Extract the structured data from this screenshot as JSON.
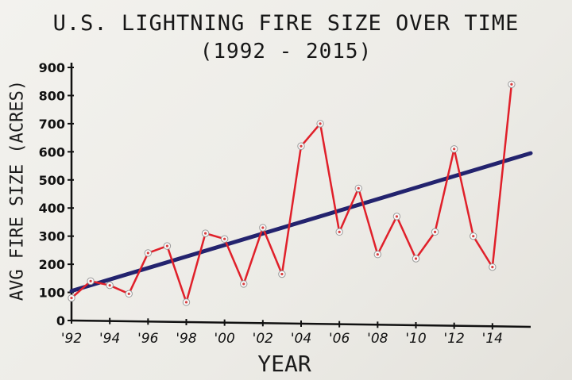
{
  "chart_data": {
    "type": "line",
    "title": "U.S. LIGHTNING FIRE SIZE OVER TIME",
    "subtitle": "(1992 - 2015)",
    "xlabel": "YEAR",
    "ylabel": "AVG FIRE SIZE (ACRES)",
    "ylim": [
      0,
      900
    ],
    "y_ticks": [
      "0",
      "100",
      "200",
      "300",
      "400",
      "500",
      "600",
      "700",
      "800",
      "900"
    ],
    "x_ticks": [
      "'92",
      "'94",
      "'96",
      "'98",
      "'00",
      "'02",
      "'04",
      "'06",
      "'08",
      "'10",
      "'12",
      "'14"
    ],
    "x_tick_years": [
      1992,
      1994,
      1996,
      1998,
      2000,
      2002,
      2004,
      2006,
      2008,
      2010,
      2012,
      2014
    ],
    "grid": false,
    "series": [
      {
        "color": "#e0202a",
        "x": [
          1992,
          1993,
          1994,
          1995,
          1996,
          1997,
          1998,
          1999,
          2000,
          2001,
          2002,
          2003,
          2004,
          2005,
          2006,
          2007,
          2008,
          2009,
          2010,
          2011,
          2012,
          2013,
          2014,
          2015
        ],
        "values": [
          80,
          140,
          125,
          95,
          240,
          265,
          65,
          310,
          290,
          130,
          330,
          165,
          620,
          700,
          315,
          470,
          235,
          370,
          220,
          315,
          610,
          300,
          190,
          840
        ]
      },
      {
        "color": "#23236e",
        "type": "trend",
        "x": [
          1992,
          2016
        ],
        "values": [
          105,
          595
        ]
      }
    ]
  }
}
